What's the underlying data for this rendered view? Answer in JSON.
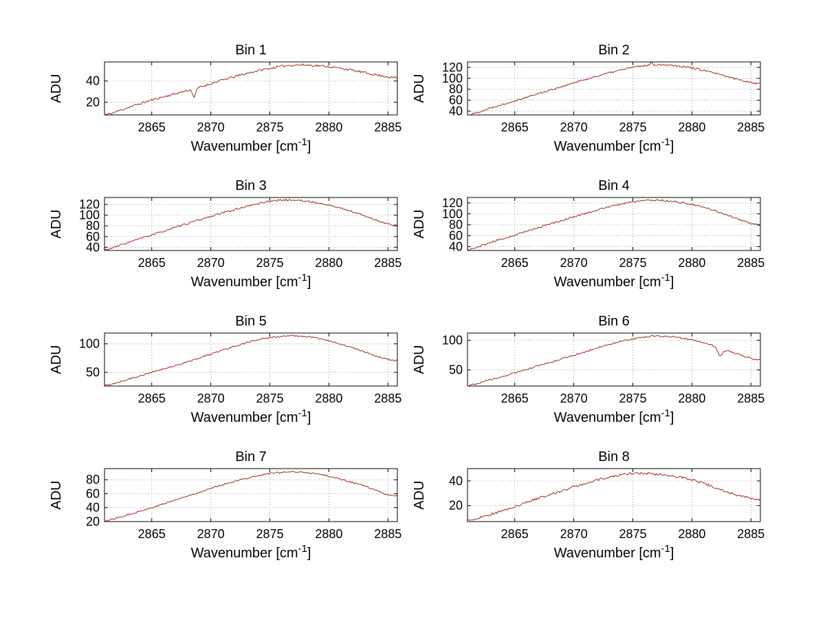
{
  "colors": {
    "line": "#9f2a1d",
    "grid": "#9a9a9a",
    "axis": "#000000",
    "text": "#000000"
  },
  "chart_data": [
    {
      "type": "line",
      "title": "Bin 1",
      "xlabel": {
        "text": "Wavenumber [cm",
        "sup": "-1",
        "suffix": "]"
      },
      "ylabel": "ADU",
      "xlim": [
        2861,
        2885.8
      ],
      "xticks": [
        2865,
        2870,
        2875,
        2880,
        2885
      ],
      "ylim": [
        8,
        58
      ],
      "yticks": [
        20,
        40
      ],
      "x": [
        2861,
        2863,
        2865,
        2867,
        2869,
        2871,
        2873,
        2875,
        2877,
        2879,
        2881,
        2883,
        2885,
        2885.8
      ],
      "y": [
        8,
        15,
        22,
        28,
        34,
        41,
        47,
        52,
        55,
        54.5,
        52,
        48,
        44,
        43
      ],
      "features": [
        {
          "x": 2868.6,
          "depth": 8,
          "width": 0.18
        }
      ],
      "noise_amp": 1.0,
      "seed": 11,
      "grid": true
    },
    {
      "type": "line",
      "title": "Bin 2",
      "xlabel": {
        "text": "Wavenumber [cm",
        "sup": "-1",
        "suffix": "]"
      },
      "ylabel": "ADU",
      "xlim": [
        2861,
        2885.8
      ],
      "xticks": [
        2865,
        2870,
        2875,
        2880,
        2885
      ],
      "ylim": [
        33,
        130
      ],
      "yticks": [
        40,
        60,
        80,
        100,
        120
      ],
      "x": [
        2861,
        2863,
        2865,
        2867,
        2869,
        2871,
        2873,
        2875,
        2877,
        2879,
        2881,
        2883,
        2885,
        2885.8
      ],
      "y": [
        33,
        46,
        59,
        72,
        85,
        98,
        110,
        120,
        125,
        122.5,
        114.5,
        103,
        93,
        90
      ],
      "features": [
        {
          "x": 2876.6,
          "depth": -5,
          "width": 0.12
        }
      ],
      "noise_amp": 1.6,
      "seed": 22,
      "grid": true
    },
    {
      "type": "line",
      "title": "Bin 3",
      "xlabel": {
        "text": "Wavenumber [cm",
        "sup": "-1",
        "suffix": "]"
      },
      "ylabel": "ADU",
      "xlim": [
        2861,
        2885.8
      ],
      "xticks": [
        2865,
        2870,
        2875,
        2880,
        2885
      ],
      "ylim": [
        34,
        133
      ],
      "yticks": [
        40,
        60,
        80,
        100,
        120
      ],
      "x": [
        2861,
        2863,
        2865,
        2867,
        2869,
        2871,
        2873,
        2875,
        2877,
        2879,
        2881,
        2883,
        2885,
        2885.8
      ],
      "y": [
        35,
        49,
        63,
        77,
        91,
        104,
        116,
        126,
        128,
        123,
        113,
        99,
        84,
        81
      ],
      "features": [],
      "noise_amp": 1.6,
      "seed": 33,
      "grid": true
    },
    {
      "type": "line",
      "title": "Bin 4",
      "xlabel": {
        "text": "Wavenumber [cm",
        "sup": "-1",
        "suffix": "]"
      },
      "ylabel": "ADU",
      "xlim": [
        2861,
        2885.8
      ],
      "xticks": [
        2865,
        2870,
        2875,
        2880,
        2885
      ],
      "ylim": [
        33,
        130
      ],
      "yticks": [
        40,
        60,
        80,
        100,
        120
      ],
      "x": [
        2861,
        2863,
        2865,
        2867,
        2869,
        2871,
        2873,
        2875,
        2877,
        2879,
        2881,
        2883,
        2885,
        2885.8
      ],
      "y": [
        34,
        48,
        61,
        75,
        88,
        101,
        113,
        122,
        125,
        121,
        112,
        98,
        83,
        80
      ],
      "features": [],
      "noise_amp": 1.6,
      "seed": 44,
      "grid": true
    },
    {
      "type": "line",
      "title": "Bin 5",
      "xlabel": {
        "text": "Wavenumber [cm",
        "sup": "-1",
        "suffix": "]"
      },
      "ylabel": "ADU",
      "xlim": [
        2861,
        2885.8
      ],
      "xticks": [
        2865,
        2870,
        2875,
        2880,
        2885
      ],
      "ylim": [
        26,
        119
      ],
      "yticks": [
        50,
        100
      ],
      "x": [
        2861,
        2863,
        2865,
        2867,
        2869,
        2871,
        2873,
        2875,
        2877,
        2879,
        2881,
        2883,
        2885,
        2885.8
      ],
      "y": [
        27,
        38,
        50,
        62,
        75,
        89,
        102,
        111,
        114,
        110,
        100,
        86,
        73,
        71
      ],
      "features": [],
      "noise_amp": 1.3,
      "seed": 55,
      "grid": true
    },
    {
      "type": "line",
      "title": "Bin 6",
      "xlabel": {
        "text": "Wavenumber [cm",
        "sup": "-1",
        "suffix": "]"
      },
      "ylabel": "ADU",
      "xlim": [
        2861,
        2885.8
      ],
      "xticks": [
        2865,
        2870,
        2875,
        2880,
        2885
      ],
      "ylim": [
        23,
        112
      ],
      "yticks": [
        50,
        100
      ],
      "x": [
        2861,
        2863,
        2865,
        2867,
        2869,
        2871,
        2873,
        2875,
        2877,
        2879,
        2881,
        2883,
        2885,
        2885.8
      ],
      "y": [
        24,
        34,
        45,
        57,
        69,
        81,
        93,
        102,
        107,
        104,
        96,
        83,
        70,
        67
      ],
      "features": [
        {
          "x": 2882.4,
          "depth": 13,
          "width": 0.3
        }
      ],
      "noise_amp": 1.3,
      "seed": 66,
      "grid": true
    },
    {
      "type": "line",
      "title": "Bin 7",
      "xlabel": {
        "text": "Wavenumber [cm",
        "sup": "-1",
        "suffix": "]"
      },
      "ylabel": "ADU",
      "xlim": [
        2861,
        2885.8
      ],
      "xticks": [
        2865,
        2870,
        2875,
        2880,
        2885
      ],
      "ylim": [
        20,
        96
      ],
      "yticks": [
        20,
        40,
        60,
        80
      ],
      "x": [
        2861,
        2863,
        2865,
        2867,
        2869,
        2871,
        2873,
        2875,
        2877,
        2879,
        2881,
        2883,
        2885,
        2885.8
      ],
      "y": [
        21,
        30,
        40,
        51,
        62,
        73,
        82,
        89,
        91,
        88.5,
        81,
        71,
        59,
        57
      ],
      "features": [],
      "noise_amp": 1.1,
      "seed": 77,
      "grid": true
    },
    {
      "type": "line",
      "title": "Bin 8",
      "xlabel": {
        "text": "Wavenumber [cm",
        "sup": "-1",
        "suffix": "]"
      },
      "ylabel": "ADU",
      "xlim": [
        2861,
        2885.8
      ],
      "xticks": [
        2865,
        2870,
        2875,
        2880,
        2885
      ],
      "ylim": [
        7,
        50
      ],
      "yticks": [
        20,
        40
      ],
      "x": [
        2861,
        2863,
        2865,
        2867,
        2869,
        2871,
        2873,
        2875,
        2877,
        2879,
        2881,
        2883,
        2885,
        2885.8
      ],
      "y": [
        8,
        13,
        19,
        26,
        32,
        38,
        43,
        46,
        45.5,
        43,
        38,
        31,
        26,
        25
      ],
      "features": [],
      "noise_amp": 0.9,
      "seed": 88,
      "grid": true
    }
  ]
}
